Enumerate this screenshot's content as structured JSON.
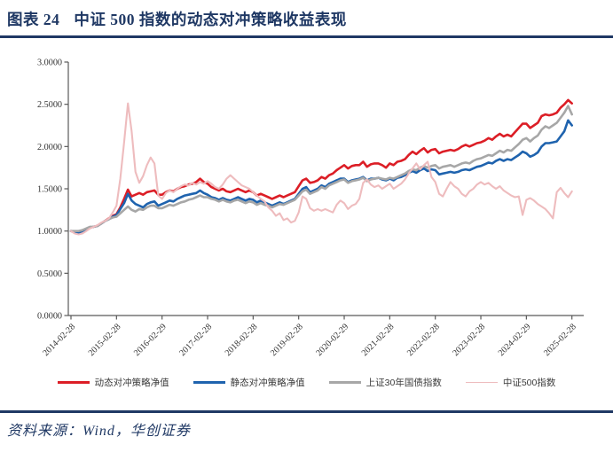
{
  "header": {
    "chart_label": "图表 24",
    "title": "中证 500 指数的动态对冲策略收益表现"
  },
  "footer": {
    "source": "资料来源：Wind，华创证券"
  },
  "colors": {
    "accent_navy": "#1f3864",
    "axis_line": "#595959",
    "tick_text": "#333333",
    "series_dynamic_hedge": "#dc1e26",
    "series_static_hedge": "#1f63ae",
    "series_treasury": "#a7a7a7",
    "series_csi500": "#eebcbe"
  },
  "chart_data": {
    "type": "line",
    "title": "",
    "xlabel": "",
    "ylabel": "",
    "ylim": [
      0.0,
      3.0
    ],
    "grid": false,
    "legend_position": "bottom",
    "y_tick_labels": [
      "0.0000",
      "0.5000",
      "1.0000",
      "1.5000",
      "2.0000",
      "2.5000",
      "3.0000"
    ],
    "x_tick_labels": [
      "2014-02-28",
      "2015-02-28",
      "2016-02-29",
      "2017-02-28",
      "2018-02-28",
      "2019-02-28",
      "2020-02-29",
      "2021-02-28",
      "2022-02-28",
      "2023-02-28",
      "2024-02-29",
      "2025-02-28"
    ],
    "x_tick_positions": [
      0,
      12,
      24,
      36,
      48,
      60,
      72,
      84,
      96,
      108,
      120,
      132
    ],
    "n_points": 133,
    "x_unit": "month",
    "series": [
      {
        "name": "动态对冲策略净值",
        "color": "#dc1e26",
        "width": 2.6,
        "values": [
          1.0,
          0.99,
          0.98,
          1.0,
          1.02,
          1.04,
          1.05,
          1.06,
          1.09,
          1.12,
          1.15,
          1.18,
          1.2,
          1.28,
          1.38,
          1.49,
          1.41,
          1.43,
          1.45,
          1.43,
          1.46,
          1.47,
          1.48,
          1.43,
          1.43,
          1.46,
          1.48,
          1.47,
          1.5,
          1.52,
          1.53,
          1.55,
          1.56,
          1.58,
          1.62,
          1.58,
          1.56,
          1.52,
          1.5,
          1.48,
          1.5,
          1.47,
          1.46,
          1.48,
          1.5,
          1.48,
          1.46,
          1.48,
          1.46,
          1.42,
          1.44,
          1.42,
          1.4,
          1.38,
          1.4,
          1.42,
          1.4,
          1.42,
          1.44,
          1.46,
          1.53,
          1.6,
          1.62,
          1.57,
          1.58,
          1.6,
          1.64,
          1.62,
          1.66,
          1.68,
          1.72,
          1.75,
          1.78,
          1.74,
          1.77,
          1.78,
          1.78,
          1.82,
          1.76,
          1.79,
          1.8,
          1.8,
          1.78,
          1.75,
          1.8,
          1.78,
          1.82,
          1.83,
          1.85,
          1.9,
          1.94,
          1.91,
          1.95,
          1.98,
          1.93,
          1.96,
          1.97,
          1.92,
          1.94,
          1.95,
          1.96,
          1.95,
          1.97,
          2.0,
          2.02,
          2.0,
          2.02,
          2.04,
          2.05,
          2.07,
          2.1,
          2.08,
          2.12,
          2.15,
          2.12,
          2.14,
          2.12,
          2.17,
          2.22,
          2.27,
          2.27,
          2.22,
          2.25,
          2.28,
          2.36,
          2.38,
          2.37,
          2.38,
          2.4,
          2.46,
          2.5,
          2.55,
          2.51
        ]
      },
      {
        "name": "静态对冲策略净值",
        "color": "#1f63ae",
        "width": 2.6,
        "values": [
          1.0,
          0.99,
          0.98,
          1.0,
          1.02,
          1.04,
          1.05,
          1.06,
          1.09,
          1.12,
          1.14,
          1.17,
          1.19,
          1.26,
          1.33,
          1.44,
          1.36,
          1.32,
          1.3,
          1.28,
          1.32,
          1.34,
          1.35,
          1.3,
          1.32,
          1.34,
          1.36,
          1.35,
          1.38,
          1.4,
          1.42,
          1.43,
          1.44,
          1.45,
          1.48,
          1.45,
          1.43,
          1.4,
          1.39,
          1.37,
          1.39,
          1.37,
          1.36,
          1.38,
          1.4,
          1.38,
          1.36,
          1.38,
          1.37,
          1.34,
          1.36,
          1.34,
          1.32,
          1.3,
          1.32,
          1.34,
          1.32,
          1.34,
          1.36,
          1.38,
          1.44,
          1.5,
          1.52,
          1.46,
          1.48,
          1.5,
          1.54,
          1.52,
          1.56,
          1.58,
          1.6,
          1.62,
          1.62,
          1.58,
          1.6,
          1.61,
          1.62,
          1.64,
          1.6,
          1.62,
          1.62,
          1.63,
          1.61,
          1.6,
          1.62,
          1.6,
          1.63,
          1.64,
          1.66,
          1.69,
          1.71,
          1.69,
          1.72,
          1.74,
          1.71,
          1.73,
          1.72,
          1.67,
          1.68,
          1.69,
          1.7,
          1.69,
          1.7,
          1.72,
          1.73,
          1.72,
          1.74,
          1.76,
          1.77,
          1.79,
          1.81,
          1.8,
          1.83,
          1.85,
          1.83,
          1.85,
          1.84,
          1.87,
          1.9,
          1.94,
          1.92,
          1.88,
          1.9,
          1.93,
          2.0,
          2.04,
          2.04,
          2.05,
          2.06,
          2.12,
          2.18,
          2.31,
          2.25
        ]
      },
      {
        "name": "上证30年国债指数",
        "color": "#a7a7a7",
        "width": 2.6,
        "values": [
          1.0,
          1.0,
          1.0,
          1.01,
          1.03,
          1.05,
          1.05,
          1.06,
          1.09,
          1.12,
          1.14,
          1.16,
          1.17,
          1.21,
          1.25,
          1.29,
          1.25,
          1.23,
          1.26,
          1.25,
          1.28,
          1.3,
          1.3,
          1.27,
          1.27,
          1.29,
          1.31,
          1.3,
          1.32,
          1.34,
          1.35,
          1.37,
          1.38,
          1.4,
          1.42,
          1.4,
          1.4,
          1.38,
          1.37,
          1.35,
          1.37,
          1.35,
          1.34,
          1.36,
          1.37,
          1.35,
          1.33,
          1.35,
          1.34,
          1.31,
          1.33,
          1.31,
          1.3,
          1.28,
          1.3,
          1.32,
          1.31,
          1.33,
          1.35,
          1.37,
          1.42,
          1.47,
          1.49,
          1.44,
          1.46,
          1.48,
          1.52,
          1.5,
          1.54,
          1.56,
          1.58,
          1.6,
          1.61,
          1.57,
          1.59,
          1.6,
          1.61,
          1.63,
          1.59,
          1.61,
          1.62,
          1.63,
          1.62,
          1.61,
          1.63,
          1.62,
          1.64,
          1.66,
          1.68,
          1.71,
          1.73,
          1.72,
          1.75,
          1.77,
          1.75,
          1.77,
          1.78,
          1.74,
          1.76,
          1.77,
          1.78,
          1.76,
          1.78,
          1.8,
          1.81,
          1.8,
          1.83,
          1.85,
          1.86,
          1.88,
          1.9,
          1.89,
          1.92,
          1.95,
          1.93,
          1.96,
          1.95,
          1.99,
          2.03,
          2.08,
          2.1,
          2.06,
          2.1,
          2.13,
          2.2,
          2.24,
          2.22,
          2.25,
          2.28,
          2.34,
          2.4,
          2.48,
          2.38
        ]
      },
      {
        "name": "中证500指数",
        "color": "#eebcbe",
        "width": 2.1,
        "values": [
          1.0,
          0.97,
          0.96,
          0.97,
          1.0,
          1.03,
          1.05,
          1.07,
          1.1,
          1.12,
          1.15,
          1.22,
          1.3,
          1.62,
          2.05,
          2.51,
          2.18,
          1.7,
          1.57,
          1.65,
          1.78,
          1.87,
          1.8,
          1.42,
          1.38,
          1.45,
          1.48,
          1.46,
          1.5,
          1.53,
          1.55,
          1.54,
          1.57,
          1.55,
          1.58,
          1.56,
          1.59,
          1.56,
          1.52,
          1.5,
          1.55,
          1.62,
          1.66,
          1.62,
          1.58,
          1.54,
          1.52,
          1.5,
          1.46,
          1.42,
          1.38,
          1.35,
          1.28,
          1.24,
          1.18,
          1.21,
          1.13,
          1.15,
          1.1,
          1.12,
          1.22,
          1.41,
          1.38,
          1.27,
          1.24,
          1.26,
          1.24,
          1.26,
          1.24,
          1.22,
          1.31,
          1.36,
          1.33,
          1.26,
          1.3,
          1.32,
          1.38,
          1.57,
          1.61,
          1.55,
          1.52,
          1.54,
          1.5,
          1.53,
          1.56,
          1.5,
          1.53,
          1.56,
          1.61,
          1.68,
          1.74,
          1.8,
          1.73,
          1.78,
          1.82,
          1.64,
          1.58,
          1.44,
          1.41,
          1.5,
          1.58,
          1.53,
          1.5,
          1.44,
          1.41,
          1.47,
          1.5,
          1.55,
          1.58,
          1.55,
          1.57,
          1.53,
          1.5,
          1.53,
          1.48,
          1.45,
          1.42,
          1.4,
          1.41,
          1.19,
          1.37,
          1.39,
          1.36,
          1.32,
          1.29,
          1.26,
          1.21,
          1.15,
          1.46,
          1.51,
          1.45,
          1.4,
          1.47
        ]
      }
    ]
  }
}
